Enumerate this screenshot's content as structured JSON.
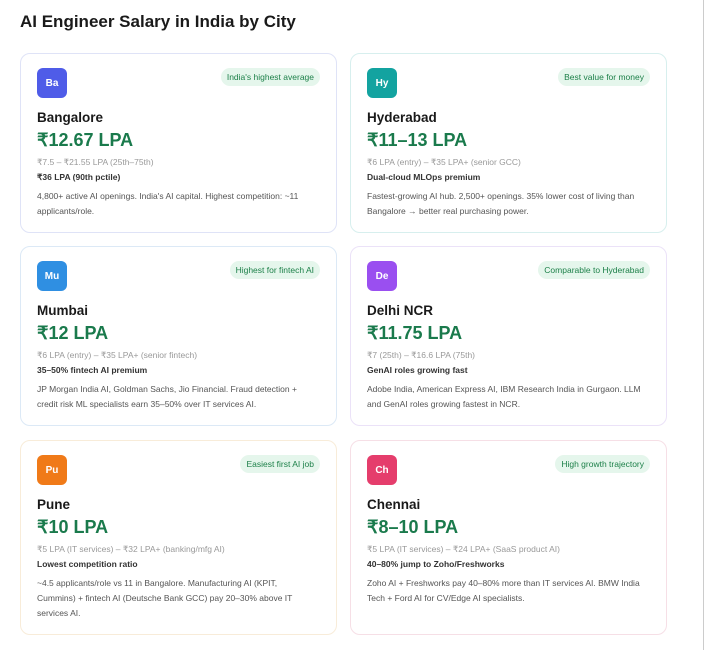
{
  "header": {
    "title": "AI Engineer Salary in India by City"
  },
  "cards": [
    {
      "initials": "Ba",
      "badge": "India's highest average",
      "city": "Bangalore",
      "salary": "₹12.67 LPA",
      "range": "₹7.5 – ₹21.55 LPA (25th–75th)",
      "highlight": "₹36 LPA (90th pctile)",
      "description": "4,800+ active AI openings. India's AI capital. Highest competition: ~11 applicants/role."
    },
    {
      "initials": "Hy",
      "badge": "Best value for money",
      "city": "Hyderabad",
      "salary": "₹11–13 LPA",
      "range": "₹6 LPA (entry) – ₹35 LPA+ (senior GCC)",
      "highlight": "Dual-cloud MLOps premium",
      "description": "Fastest-growing AI hub. 2,500+ openings. 35% lower cost of living than Bangalore → better real purchasing power."
    },
    {
      "initials": "Mu",
      "badge": "Highest for fintech AI",
      "city": "Mumbai",
      "salary": "₹12 LPA",
      "range": "₹6 LPA (entry) – ₹35 LPA+ (senior fintech)",
      "highlight": "35–50% fintech AI premium",
      "description": "JP Morgan India AI, Goldman Sachs, Jio Financial. Fraud detection + credit risk ML specialists earn 35–50% over IT services AI."
    },
    {
      "initials": "De",
      "badge": "Comparable to Hyderabad",
      "city": "Delhi NCR",
      "salary": "₹11.75 LPA",
      "range": "₹7 (25th) – ₹16.6 LPA (75th)",
      "highlight": "GenAI roles growing fast",
      "description": "Adobe India, American Express AI, IBM Research India in Gurgaon. LLM and GenAI roles growing fastest in NCR."
    },
    {
      "initials": "Pu",
      "badge": "Easiest first AI job",
      "city": "Pune",
      "salary": "₹10 LPA",
      "range": "₹5 LPA (IT services) – ₹32 LPA+ (banking/mfg AI)",
      "highlight": "Lowest competition ratio",
      "description": "~4.5 applicants/role vs 11 in Bangalore. Manufacturing AI (KPIT, Cummins) + fintech AI (Deutsche Bank GCC) pay 20–30% above IT services AI."
    },
    {
      "initials": "Ch",
      "badge": "High growth trajectory",
      "city": "Chennai",
      "salary": "₹8–10 LPA",
      "range": "₹5 LPA (IT services) – ₹24 LPA+ (SaaS product AI)",
      "highlight": "40–80% jump to Zoho/Freshworks",
      "description": "Zoho AI + Freshworks pay 40–80% more than IT services AI. BMW India Tech + Ford AI for CV/Edge AI specialists."
    }
  ]
}
